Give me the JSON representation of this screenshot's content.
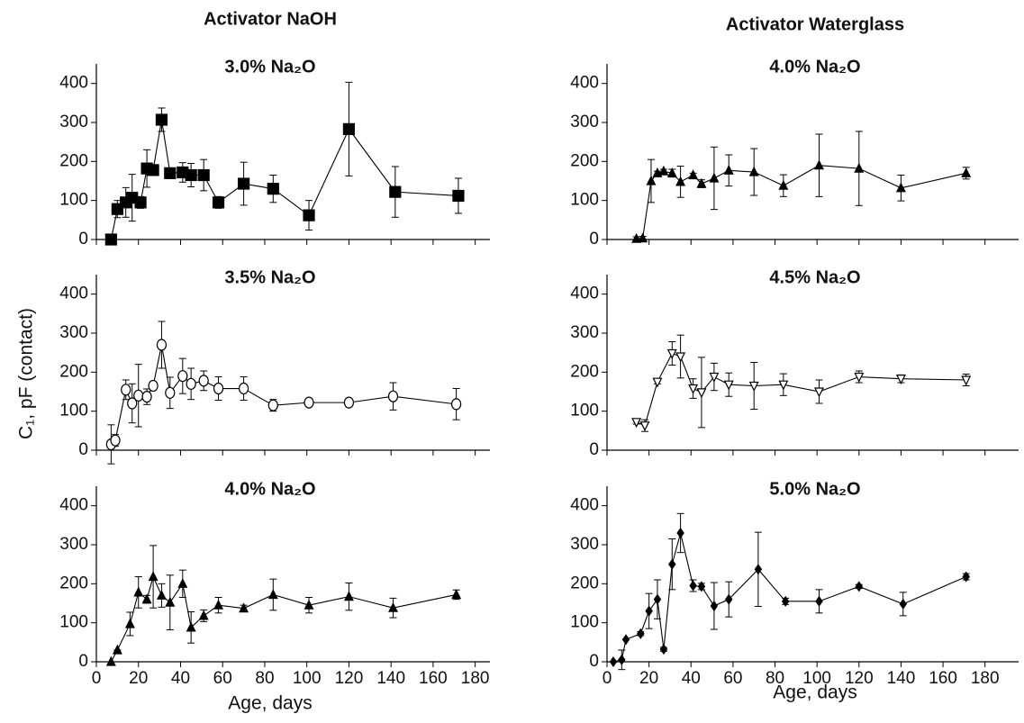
{
  "chart_data": [
    {
      "type": "line",
      "column_title": "Activator NaOH",
      "title": "3.0% Na₂O",
      "color": "#000000",
      "marker": "square",
      "marker_fill": true,
      "x": [
        7,
        10,
        14,
        17,
        21,
        24,
        27,
        31,
        35,
        41,
        45,
        51,
        58,
        70,
        84,
        101,
        120,
        142,
        172
      ],
      "values": [
        0,
        78,
        95,
        107,
        95,
        182,
        178,
        307,
        170,
        172,
        165,
        165,
        95,
        143,
        130,
        62,
        283,
        122,
        112
      ],
      "errors": [
        0,
        22,
        38,
        60,
        15,
        48,
        10,
        30,
        5,
        25,
        30,
        40,
        15,
        55,
        35,
        38,
        120,
        65,
        45
      ],
      "xlim": [
        0,
        187
      ],
      "ylim": [
        0,
        450
      ],
      "yticks": [
        0,
        100,
        200,
        300,
        400
      ]
    },
    {
      "type": "line",
      "title": "3.5% Na₂O",
      "ylabel": "C₁, pF (contact)",
      "color": "#000000",
      "marker": "circle",
      "marker_fill": false,
      "x": [
        7,
        9,
        14,
        17,
        20,
        24,
        27,
        31,
        35,
        41,
        45,
        51,
        58,
        70,
        84,
        101,
        120,
        141,
        171
      ],
      "values": [
        15,
        25,
        155,
        120,
        140,
        137,
        165,
        270,
        147,
        190,
        170,
        178,
        158,
        158,
        115,
        122,
        122,
        138,
        118
      ],
      "errors": [
        50,
        15,
        25,
        50,
        80,
        20,
        10,
        60,
        40,
        45,
        40,
        25,
        30,
        30,
        15,
        5,
        8,
        35,
        40
      ],
      "xlim": [
        0,
        187
      ],
      "ylim": [
        0,
        450
      ],
      "yticks": [
        0,
        100,
        200,
        300,
        400
      ]
    },
    {
      "type": "line",
      "title": "4.0% Na₂O",
      "xlabel": "Age, days",
      "color": "#000000",
      "marker": "triangle",
      "marker_fill": true,
      "x": [
        7,
        10,
        16,
        20,
        24,
        27,
        31,
        35,
        41,
        45,
        51,
        58,
        70,
        84,
        101,
        120,
        141,
        171
      ],
      "values": [
        0,
        30,
        97,
        178,
        160,
        218,
        170,
        152,
        200,
        88,
        118,
        145,
        137,
        172,
        145,
        167,
        138,
        172
      ],
      "errors": [
        0,
        0,
        30,
        40,
        10,
        80,
        30,
        70,
        35,
        40,
        15,
        20,
        8,
        40,
        20,
        35,
        25,
        12
      ],
      "xlim": [
        0,
        187
      ],
      "xticks": [
        0,
        20,
        40,
        60,
        80,
        100,
        120,
        140,
        160,
        180
      ],
      "ylim": [
        0,
        450
      ],
      "yticks": [
        0,
        100,
        200,
        300,
        400
      ]
    },
    {
      "type": "line",
      "column_title": "Activator Waterglass",
      "title": "4.0% Na₂O",
      "color": "#000000",
      "marker": "triangle",
      "marker_fill": true,
      "x": [
        14,
        17,
        21,
        24,
        27,
        31,
        35,
        41,
        45,
        51,
        58,
        70,
        84,
        101,
        120,
        140,
        171
      ],
      "values": [
        2,
        3,
        150,
        170,
        175,
        170,
        148,
        165,
        143,
        157,
        177,
        173,
        138,
        190,
        182,
        132,
        170
      ],
      "errors": [
        5,
        5,
        55,
        5,
        5,
        10,
        40,
        5,
        10,
        80,
        40,
        60,
        28,
        80,
        95,
        33,
        15
      ],
      "xlim": [
        0,
        196
      ],
      "ylim": [
        0,
        450
      ],
      "yticks": [
        0,
        100,
        200,
        300,
        400
      ]
    },
    {
      "type": "line",
      "title": "4.5% Na₂O",
      "color": "#000000",
      "marker": "triangle-down",
      "marker_fill": false,
      "x": [
        14,
        18,
        24,
        31,
        35,
        41,
        45,
        51,
        58,
        70,
        84,
        101,
        120,
        140,
        171
      ],
      "values": [
        72,
        63,
        175,
        248,
        240,
        158,
        148,
        188,
        168,
        165,
        168,
        150,
        188,
        183,
        180
      ],
      "errors": [
        5,
        15,
        5,
        30,
        55,
        25,
        90,
        35,
        30,
        60,
        28,
        30,
        15,
        10,
        15
      ],
      "xlim": [
        0,
        196
      ],
      "ylim": [
        0,
        450
      ],
      "yticks": [
        0,
        100,
        200,
        300,
        400
      ]
    },
    {
      "type": "line",
      "title": "5.0% Na₂O",
      "xlabel": "Age, days",
      "color": "#000000",
      "marker": "diamond",
      "marker_fill": true,
      "x": [
        3,
        7,
        9,
        16,
        20,
        24,
        27,
        31,
        35,
        41,
        45,
        51,
        58,
        72,
        85,
        101,
        120,
        141,
        171
      ],
      "values": [
        0,
        5,
        57,
        72,
        130,
        160,
        32,
        250,
        330,
        195,
        193,
        143,
        160,
        237,
        155,
        155,
        193,
        148,
        218
      ],
      "errors": [
        0,
        25,
        0,
        5,
        45,
        50,
        5,
        65,
        50,
        15,
        8,
        60,
        45,
        95,
        8,
        30,
        5,
        30,
        8
      ],
      "xlim": [
        0,
        196
      ],
      "xticks": [
        0,
        20,
        40,
        60,
        80,
        100,
        120,
        140,
        160,
        180
      ],
      "ylim": [
        0,
        450
      ],
      "yticks": [
        0,
        100,
        200,
        300,
        400
      ]
    }
  ]
}
